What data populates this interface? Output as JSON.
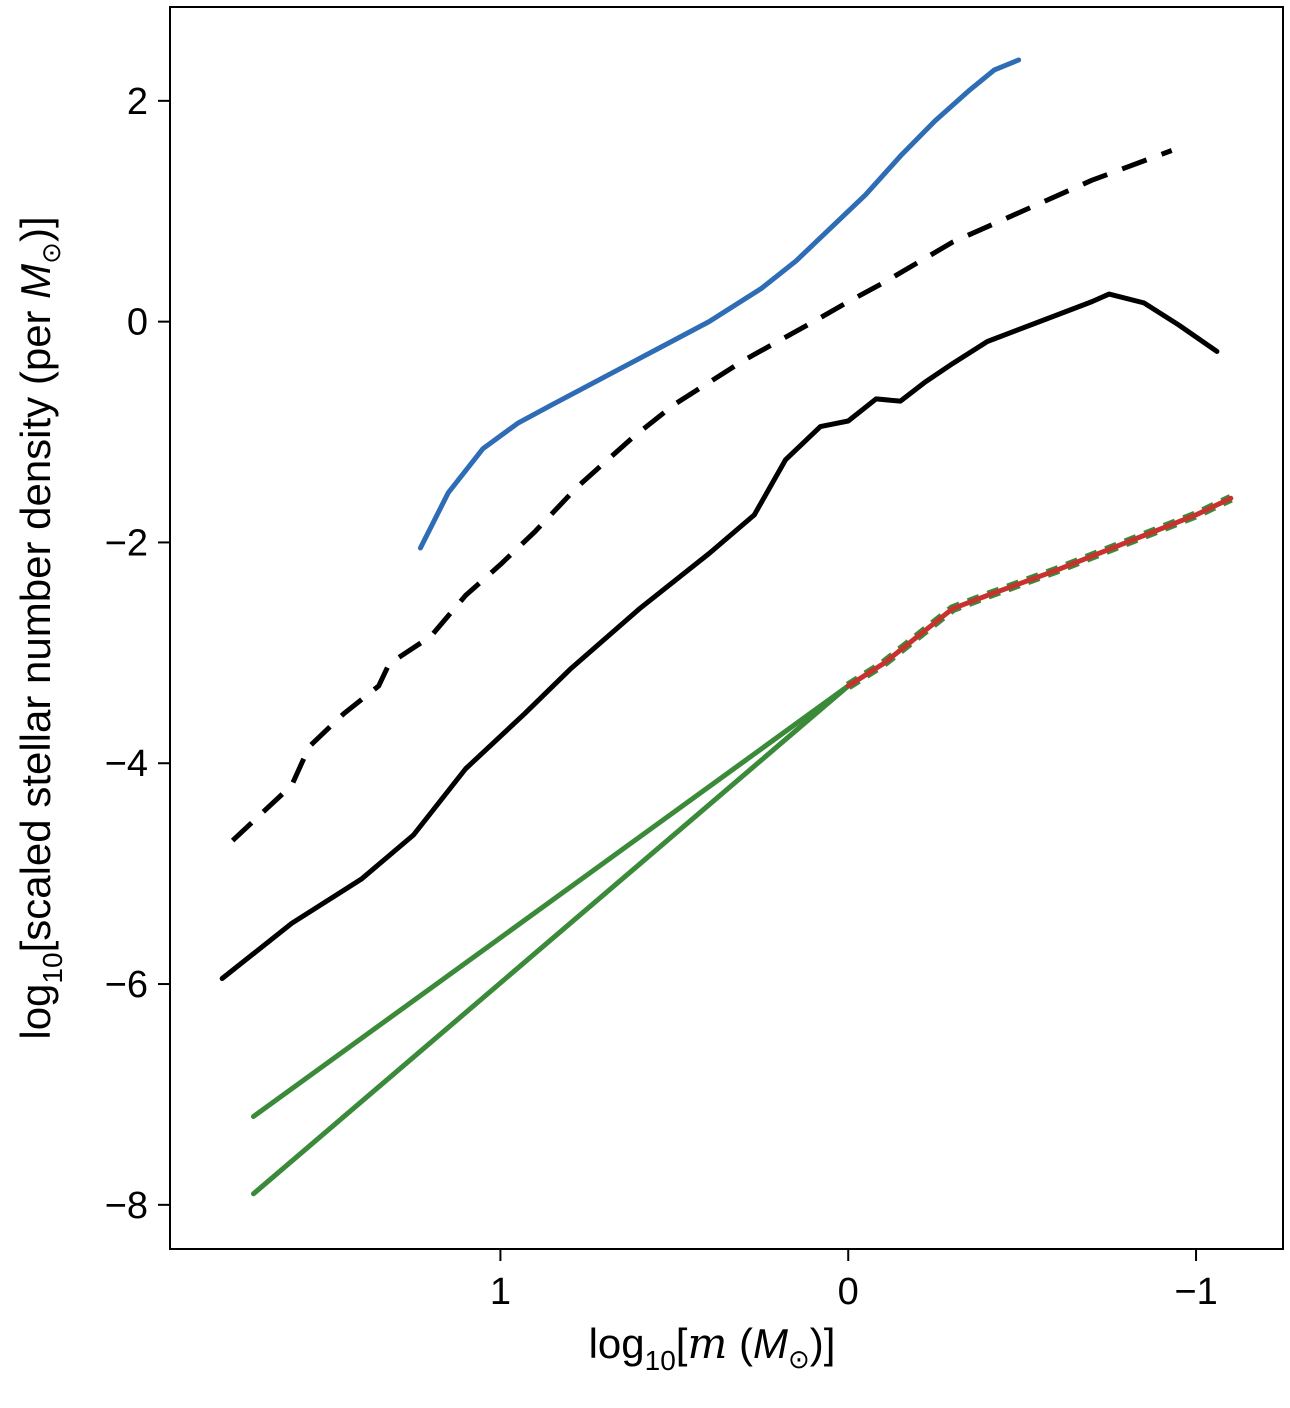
{
  "chart_data": {
    "type": "line",
    "title": "",
    "xlabel": {
      "prefix": "log",
      "sub": "10",
      "open": "[",
      "var": "m",
      "unit_open": " (",
      "unit": "M",
      "sun": "⊙",
      "close": ")]"
    },
    "ylabel": {
      "prefix": "log",
      "sub": "10",
      "text": "[scaled stellar number density (per ",
      "unit": "M",
      "sun": "⊙",
      "close": ")]"
    },
    "xlim": [
      1.95,
      -1.25
    ],
    "ylim": [
      -8.4,
      2.85
    ],
    "xticks": [
      {
        "value": 1,
        "label": "1"
      },
      {
        "value": 0,
        "label": "0"
      },
      {
        "value": -1,
        "label": "−1"
      }
    ],
    "yticks": [
      {
        "value": 2,
        "label": "2"
      },
      {
        "value": 0,
        "label": "0"
      },
      {
        "value": -2,
        "label": "−2"
      },
      {
        "value": -4,
        "label": "−4"
      },
      {
        "value": -6,
        "label": "−6"
      },
      {
        "value": -8,
        "label": "−8"
      }
    ],
    "grid": false,
    "series": [
      {
        "name": "blue",
        "color": "#2e6db5",
        "style": "solid",
        "x": [
          1.23,
          1.15,
          1.05,
          0.95,
          0.85,
          0.7,
          0.55,
          0.4,
          0.25,
          0.15,
          0.05,
          -0.05,
          -0.15,
          -0.25,
          -0.35,
          -0.42,
          -0.49
        ],
        "y": [
          -2.05,
          -1.55,
          -1.15,
          -0.92,
          -0.75,
          -0.5,
          -0.25,
          0.0,
          0.3,
          0.55,
          0.85,
          1.15,
          1.5,
          1.82,
          2.1,
          2.28,
          2.37
        ]
      },
      {
        "name": "black-dashed",
        "color": "#000000",
        "style": "dashed",
        "x": [
          1.77,
          1.6,
          1.55,
          1.45,
          1.35,
          1.32,
          1.2,
          1.1,
          1.0,
          0.9,
          0.78,
          0.62,
          0.5,
          0.3,
          0.1,
          0.0,
          -0.1,
          -0.3,
          -0.5,
          -0.7,
          -0.93
        ],
        "y": [
          -4.7,
          -4.2,
          -3.85,
          -3.55,
          -3.3,
          -3.1,
          -2.85,
          -2.48,
          -2.2,
          -1.9,
          -1.5,
          -1.05,
          -0.75,
          -0.35,
          0.0,
          0.18,
          0.35,
          0.72,
          1.0,
          1.28,
          1.55
        ]
      },
      {
        "name": "black-solid",
        "color": "#000000",
        "style": "solid",
        "x": [
          1.8,
          1.6,
          1.4,
          1.25,
          1.1,
          0.93,
          0.8,
          0.6,
          0.4,
          0.27,
          0.18,
          0.08,
          0.0,
          -0.08,
          -0.15,
          -0.22,
          -0.3,
          -0.4,
          -0.55,
          -0.7,
          -0.75,
          -0.85,
          -0.95,
          -1.06
        ],
        "y": [
          -5.95,
          -5.45,
          -5.05,
          -4.65,
          -4.05,
          -3.55,
          -3.15,
          -2.6,
          -2.1,
          -1.75,
          -1.25,
          -0.95,
          -0.9,
          -0.7,
          -0.72,
          -0.55,
          -0.38,
          -0.18,
          0.0,
          0.18,
          0.25,
          0.17,
          -0.03,
          -0.27
        ]
      },
      {
        "name": "green-upper",
        "color": "#3a8a3a",
        "style": "solid",
        "x": [
          1.71,
          0.0
        ],
        "y": [
          -7.2,
          -3.3
        ]
      },
      {
        "name": "green-lower",
        "color": "#3a8a3a",
        "style": "solid",
        "x": [
          1.71,
          0.0
        ],
        "y": [
          -7.9,
          -3.3
        ]
      },
      {
        "name": "green-dashed",
        "color": "#3a8a3a",
        "style": "dashed",
        "x": [
          0.0,
          -0.1,
          -0.2,
          -0.3,
          -0.4,
          -0.6,
          -0.8,
          -1.0,
          -1.1
        ],
        "y": [
          -3.3,
          -3.1,
          -2.85,
          -2.6,
          -2.48,
          -2.25,
          -2.0,
          -1.75,
          -1.6
        ]
      },
      {
        "name": "red",
        "color": "#c8322e",
        "style": "solid",
        "x": [
          0.0,
          -0.1,
          -0.2,
          -0.3,
          -0.4,
          -0.6,
          -0.8,
          -1.0,
          -1.1
        ],
        "y": [
          -3.3,
          -3.1,
          -2.85,
          -2.6,
          -2.48,
          -2.25,
          -2.0,
          -1.75,
          -1.6
        ]
      }
    ]
  }
}
